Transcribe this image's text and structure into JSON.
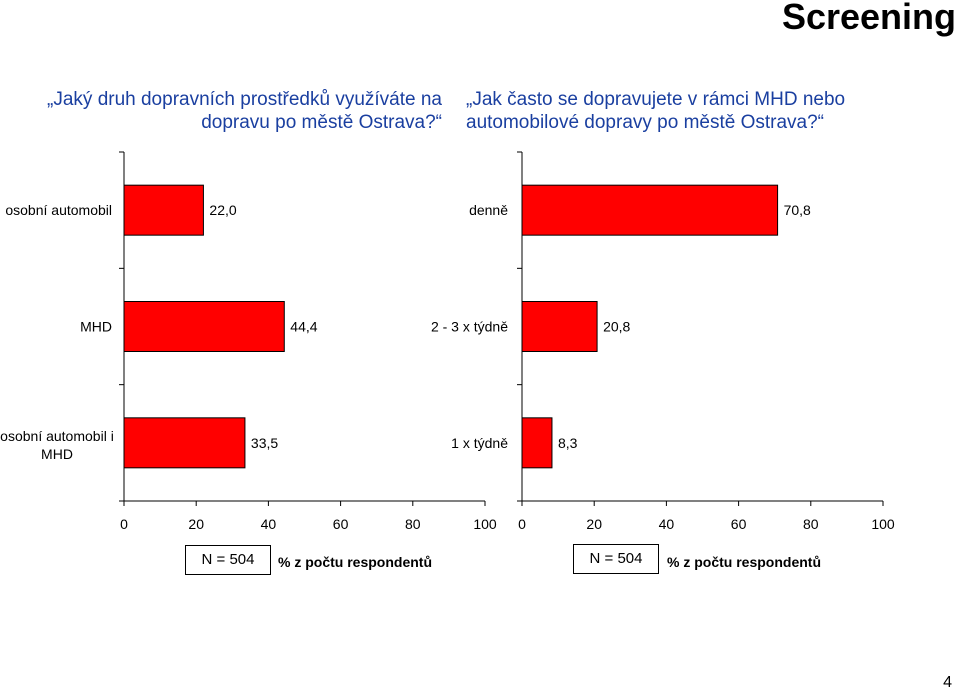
{
  "slide": {
    "heading": "Screening",
    "page_number": "4"
  },
  "chart_data": [
    {
      "type": "bar",
      "orientation": "horizontal",
      "title": "„Jaký druh dopravních prostředků využíváte na dopravu po městě Ostrava?“",
      "categories": [
        "osobní automobil",
        "MHD",
        "osobní automobil i MHD"
      ],
      "values": [
        22.0,
        44.4,
        33.5
      ],
      "value_labels": [
        "22,0",
        "44,4",
        "33,5"
      ],
      "xticks": [
        "0",
        "20",
        "40",
        "60",
        "80",
        "100"
      ],
      "xlim": [
        0,
        100
      ],
      "xlabel": "% z počtu respondentů",
      "n_label": "N = 504",
      "bar_color": "#ff0000",
      "grid": false
    },
    {
      "type": "bar",
      "orientation": "horizontal",
      "title": "„Jak často se dopravujete v rámci MHD nebo automobilové dopravy po městě Ostrava?“",
      "categories": [
        "denně",
        "2 - 3 x týdně",
        "1 x týdně"
      ],
      "values": [
        70.8,
        20.8,
        8.3
      ],
      "value_labels": [
        "70,8",
        "20,8",
        "8,3"
      ],
      "xticks": [
        "0",
        "20",
        "40",
        "60",
        "80",
        "100"
      ],
      "xlim": [
        0,
        100
      ],
      "xlabel": "% z počtu respondentů",
      "n_label": "N = 504",
      "bar_color": "#ff0000",
      "grid": false
    }
  ]
}
